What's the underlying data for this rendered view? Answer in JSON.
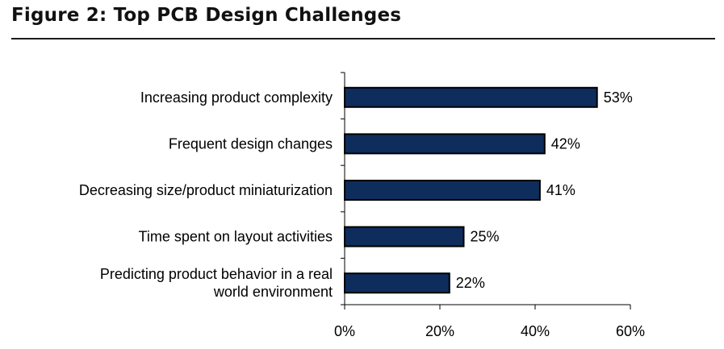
{
  "title": "Figure 2: Top PCB Design Challenges",
  "chart_data": {
    "type": "bar",
    "orientation": "horizontal",
    "title": "Figure 2: Top PCB Design Challenges",
    "xlabel": "",
    "ylabel": "",
    "categories": [
      [
        "Increasing product complexity"
      ],
      [
        "Frequent design changes"
      ],
      [
        "Decreasing size/product miniaturization"
      ],
      [
        "Time spent on layout activities"
      ],
      [
        "Predicting product behavior in a real",
        "world environment"
      ]
    ],
    "values": [
      53,
      42,
      41,
      25,
      22
    ],
    "value_labels": [
      "53%",
      "42%",
      "41%",
      "25%",
      "22%"
    ],
    "xlim": [
      0,
      60
    ],
    "x_ticks": [
      0,
      20,
      40,
      60
    ],
    "x_tick_labels": [
      "0%",
      "20%",
      "40%",
      "60%"
    ],
    "grid": false,
    "legend": "none",
    "colors": {
      "bar_fill": "#0e2d5c",
      "bar_stroke": "#000000",
      "axis": "#000000"
    }
  }
}
